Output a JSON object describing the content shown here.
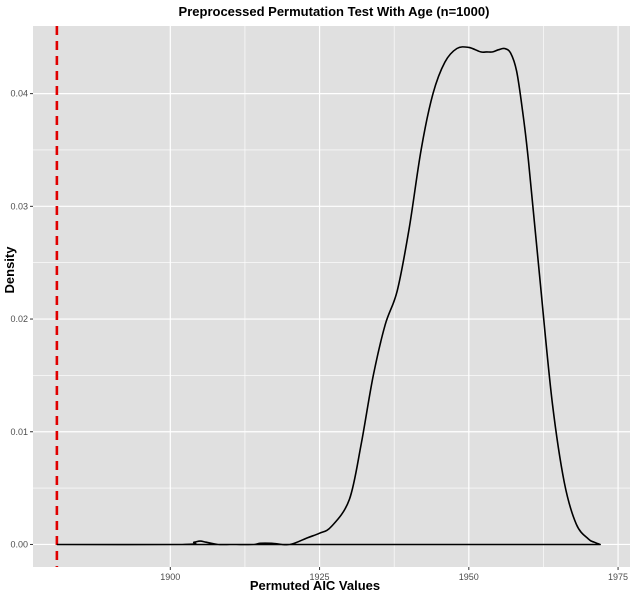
{
  "chart_data": {
    "type": "line",
    "title": "Preprocessed Permutation Test With Age (n=1000)",
    "xlabel": "Permuted AIC Values",
    "ylabel": "Density",
    "xlim": [
      1877,
      1977
    ],
    "ylim": [
      -0.002,
      0.046
    ],
    "x_ticks": [
      1900,
      1925,
      1950,
      1975
    ],
    "y_ticks": [
      0.0,
      0.01,
      0.02,
      0.03,
      0.04
    ],
    "y_tick_labels": [
      "0.00",
      "0.01",
      "0.02",
      "0.03",
      "0.04"
    ],
    "grid": true,
    "legend": "none",
    "colors": {
      "panel": "#e0e0e0",
      "grid": "#ffffff",
      "line": "#000000",
      "reference": "#e00000"
    },
    "reference_line": {
      "x": 1881,
      "style": "dashed"
    },
    "series": [
      {
        "x": [
          1881,
          1902,
          1904,
          1905,
          1906,
          1908,
          1910,
          1911,
          1914,
          1915,
          1917,
          1920,
          1923,
          1925,
          1927,
          1930,
          1932,
          1934,
          1936,
          1938,
          1940,
          1942,
          1944,
          1946,
          1948,
          1950,
          1952,
          1953,
          1954,
          1955,
          1956,
          1957,
          1958,
          1959,
          1960,
          1962,
          1964,
          1966,
          1968,
          1970,
          1971,
          1972
        ],
        "y": [
          0.0,
          0.0,
          0.0002,
          0.0003,
          0.0002,
          0.0,
          0.0,
          0.0,
          0.0,
          0.0001,
          0.0001,
          0.0,
          0.0006,
          0.001,
          0.0016,
          0.004,
          0.009,
          0.015,
          0.0195,
          0.0225,
          0.028,
          0.035,
          0.04,
          0.0428,
          0.044,
          0.0441,
          0.0437,
          0.0437,
          0.0437,
          0.0439,
          0.044,
          0.0436,
          0.042,
          0.0385,
          0.034,
          0.023,
          0.0125,
          0.0055,
          0.0018,
          0.0005,
          0.0002,
          0.0
        ]
      }
    ]
  }
}
